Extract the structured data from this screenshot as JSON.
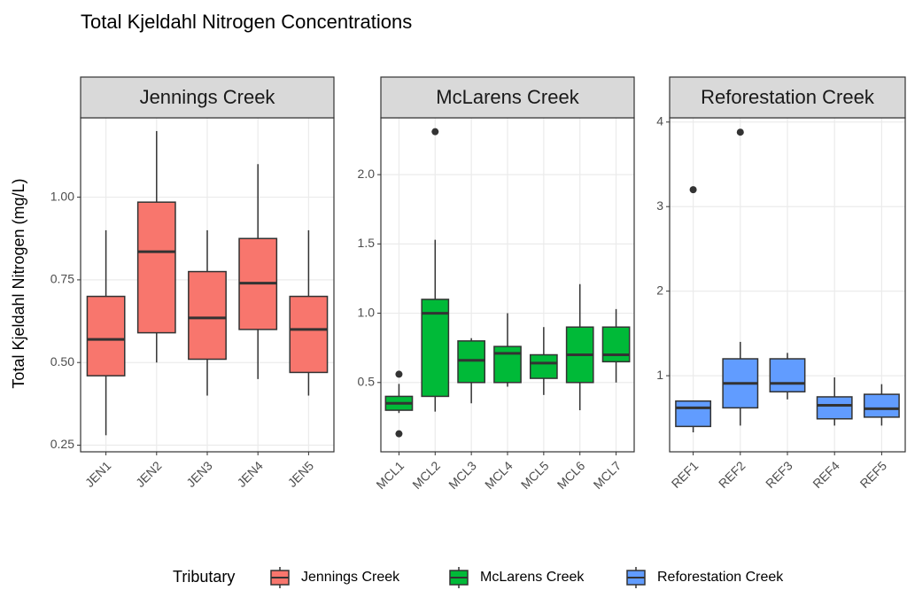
{
  "title": "Total Kjeldahl Nitrogen Concentrations",
  "y_label": "Total Kjeldahl Nitrogen (mg/L)",
  "legend": {
    "title": "Tributary",
    "position": "bottom"
  },
  "chart_data": [
    {
      "type": "box",
      "title": "Jennings Creek",
      "color": "#F8766D",
      "grid": true,
      "categories": [
        "JEN1",
        "JEN2",
        "JEN3",
        "JEN4",
        "JEN5"
      ],
      "boxes": [
        {
          "min": 0.28,
          "q1": 0.46,
          "median": 0.57,
          "q3": 0.7,
          "max": 0.9,
          "outliers": []
        },
        {
          "min": 0.5,
          "q1": 0.59,
          "median": 0.835,
          "q3": 0.985,
          "max": 1.2,
          "outliers": []
        },
        {
          "min": 0.4,
          "q1": 0.51,
          "median": 0.635,
          "q3": 0.775,
          "max": 0.9,
          "outliers": []
        },
        {
          "min": 0.45,
          "q1": 0.6,
          "median": 0.74,
          "q3": 0.875,
          "max": 1.1,
          "outliers": []
        },
        {
          "min": 0.4,
          "q1": 0.47,
          "median": 0.6,
          "q3": 0.7,
          "max": 0.9,
          "outliers": []
        }
      ],
      "ylim": [
        0.23,
        1.24
      ],
      "yticks": [
        {
          "value": 0.25,
          "label": "0.25"
        },
        {
          "value": 0.5,
          "label": "0.50"
        },
        0.75,
        {
          "value": 1,
          "label": "1.00"
        }
      ]
    },
    {
      "type": "box",
      "title": "McLarens Creek",
      "color": "#00BA38",
      "grid": true,
      "categories": [
        "MCL1",
        "MCL2",
        "MCL3",
        "MCL4",
        "MCL5",
        "MCL6",
        "MCL7"
      ],
      "boxes": [
        {
          "min": 0.28,
          "q1": 0.3,
          "median": 0.35,
          "q3": 0.4,
          "max": 0.49,
          "outliers": [
            0.56,
            0.13
          ]
        },
        {
          "min": 0.29,
          "q1": 0.4,
          "median": 1.0,
          "q3": 1.1,
          "max": 1.53,
          "outliers": [
            2.31
          ]
        },
        {
          "min": 0.35,
          "q1": 0.5,
          "median": 0.66,
          "q3": 0.8,
          "max": 0.82,
          "outliers": []
        },
        {
          "min": 0.47,
          "q1": 0.5,
          "median": 0.71,
          "q3": 0.76,
          "max": 1.0,
          "outliers": []
        },
        {
          "min": 0.41,
          "q1": 0.53,
          "median": 0.64,
          "q3": 0.7,
          "max": 0.9,
          "outliers": []
        },
        {
          "min": 0.3,
          "q1": 0.5,
          "median": 0.7,
          "q3": 0.9,
          "max": 1.21,
          "outliers": []
        },
        {
          "min": 0.5,
          "q1": 0.65,
          "median": 0.7,
          "q3": 0.9,
          "max": 1.03,
          "outliers": []
        }
      ],
      "ylim": [
        0.0,
        2.41
      ],
      "yticks": [
        0.5,
        {
          "value": 1,
          "label": "1.0"
        },
        1.5,
        {
          "value": 2,
          "label": "2.0"
        }
      ]
    },
    {
      "type": "box",
      "title": "Reforestation Creek",
      "color": "#619CFF",
      "grid": true,
      "categories": [
        "REF1",
        "REF2",
        "REF3",
        "REF4",
        "REF5"
      ],
      "boxes": [
        {
          "min": 0.33,
          "q1": 0.4,
          "median": 0.62,
          "q3": 0.7,
          "max": 0.7,
          "outliers": [
            3.2
          ]
        },
        {
          "min": 0.41,
          "q1": 0.62,
          "median": 0.91,
          "q3": 1.2,
          "max": 1.4,
          "outliers": [
            3.88
          ]
        },
        {
          "min": 0.72,
          "q1": 0.81,
          "median": 0.91,
          "q3": 1.2,
          "max": 1.27,
          "outliers": []
        },
        {
          "min": 0.41,
          "q1": 0.49,
          "median": 0.65,
          "q3": 0.75,
          "max": 0.98,
          "outliers": []
        },
        {
          "min": 0.41,
          "q1": 0.51,
          "median": 0.61,
          "q3": 0.78,
          "max": 0.9,
          "outliers": []
        }
      ],
      "ylim": [
        0.1,
        4.05
      ],
      "yticks": [
        1,
        2,
        3,
        4
      ]
    }
  ]
}
